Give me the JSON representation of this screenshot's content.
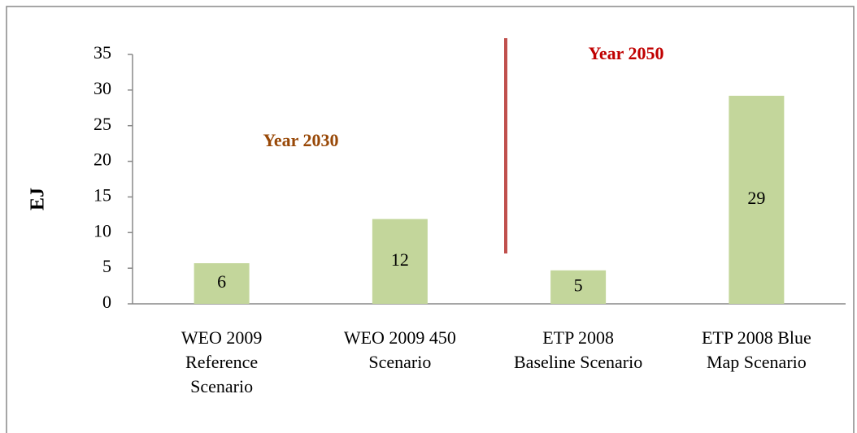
{
  "chart_data": {
    "type": "bar",
    "y_label": "EJ",
    "categories": [
      [
        "WEO 2009",
        "Reference",
        "Scenario"
      ],
      [
        "WEO 2009 450",
        "Scenario"
      ],
      [
        "ETP 2008",
        "Baseline Scenario"
      ],
      [
        "ETP 2008 Blue",
        "Map Scenario"
      ]
    ],
    "values": [
      5.7,
      11.9,
      4.7,
      29.2
    ],
    "value_labels": [
      "6",
      "12",
      "5",
      "29"
    ],
    "color": "#c3d69b",
    "ylim": [
      0,
      35
    ],
    "yticks": [
      0,
      5,
      10,
      15,
      20,
      25,
      30,
      35
    ],
    "grid": false,
    "annotations": [
      "Year 2030",
      "Year 2050"
    ]
  }
}
